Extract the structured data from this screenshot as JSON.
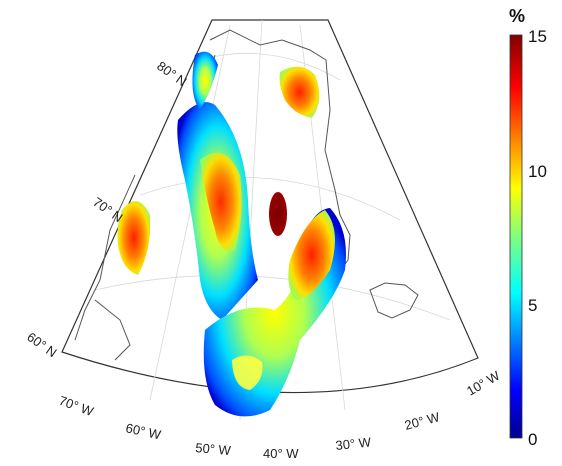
{
  "map": {
    "lat_labels": [
      "80° N",
      "70° N",
      "60° N"
    ],
    "lon_labels": [
      "70° W",
      "60° W",
      "50° W",
      "40° W",
      "30° W",
      "20° W",
      "10° W"
    ]
  },
  "colorbar": {
    "unit": "%",
    "ticks": [
      "15",
      "10",
      "5",
      "0"
    ],
    "min": 0,
    "max": 15
  },
  "colors": {
    "low": "#00008f",
    "mid": "#ffff00",
    "high": "#800000"
  }
}
